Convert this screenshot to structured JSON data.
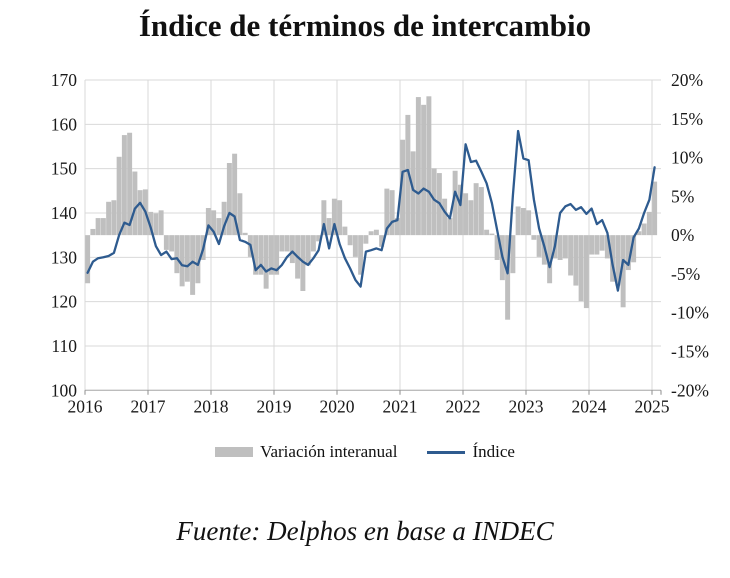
{
  "title": "Índice de términos de intercambio",
  "source": "Fuente: Delphos en base a INDEC",
  "legend": {
    "bar_label": "Variación interanual",
    "line_label": "Índice"
  },
  "colors": {
    "bar": "#BFBFBF",
    "line": "#2E5B8F",
    "grid": "#D9D9D9",
    "axis": "#ACACAC",
    "tick": "#8C8C8C",
    "text": "#1a1a1a"
  },
  "chart_data": {
    "type": "bar+line combo",
    "frequency": "monthly",
    "start": "2016-01",
    "end": "2025-01",
    "x_tick_labels": [
      "2016",
      "2017",
      "2018",
      "2019",
      "2020",
      "2021",
      "2022",
      "2023",
      "2024",
      "2025"
    ],
    "left_axis": {
      "min": 100,
      "max": 170,
      "step": 10,
      "ticks": [
        170,
        160,
        150,
        140,
        130,
        120,
        110,
        100
      ],
      "series": "Índice"
    },
    "right_axis": {
      "min": -20,
      "max": 20,
      "step": 5,
      "unit": "%",
      "ticks": [
        20,
        15,
        10,
        5,
        0,
        -5,
        -10,
        -15,
        -20
      ],
      "series": "Variación interanual"
    },
    "grid": true,
    "legend_position": "bottom",
    "series": [
      {
        "name": "Variación interanual",
        "type": "bar",
        "axis": "right",
        "unit": "%",
        "values": [
          -6.2,
          0.8,
          2.2,
          2.2,
          4.3,
          4.5,
          10.1,
          12.9,
          13.2,
          8.2,
          5.8,
          5.9,
          3.0,
          2.8,
          3.2,
          -1.9,
          -2.1,
          -4.9,
          -6.6,
          -6.0,
          -7.7,
          -6.2,
          -3.2,
          3.5,
          3.2,
          2.2,
          4.3,
          9.3,
          10.5,
          5.4,
          0.3,
          -2.8,
          -5.1,
          -5.1,
          -6.9,
          -5.1,
          -5.1,
          -2.1,
          -2.1,
          -3.6,
          -5.6,
          -7.2,
          -3.9,
          -2.1,
          -0.8,
          4.5,
          2.2,
          4.7,
          4.5,
          1.1,
          -1.3,
          -2.8,
          -5.1,
          -1.1,
          0.5,
          0.7,
          -1.5,
          6.0,
          5.8,
          2.2,
          12.3,
          15.5,
          10.8,
          17.8,
          16.8,
          17.9,
          8.6,
          8.0,
          4.7,
          2.2,
          8.3,
          6.5,
          5.4,
          4.5,
          6.7,
          6.2,
          0.7,
          0.2,
          -3.2,
          -5.8,
          -10.9,
          -4.9,
          3.7,
          3.5,
          3.2,
          -0.6,
          -2.8,
          -3.8,
          -6.2,
          -3.0,
          -3.2,
          -3.0,
          -5.2,
          -6.5,
          -8.5,
          -9.4,
          -2.5,
          -2.5,
          -2.0,
          -3.0,
          -6.0,
          -6.5,
          -9.3,
          -4.5,
          -3.5,
          0.5,
          1.5,
          3.0,
          6.9
        ]
      },
      {
        "name": "Índice",
        "type": "line",
        "axis": "left",
        "values": [
          126.5,
          129.0,
          129.8,
          130.0,
          130.3,
          131.0,
          135.0,
          137.8,
          137.3,
          141.0,
          142.3,
          140.3,
          136.8,
          132.5,
          130.5,
          131.3,
          129.6,
          129.8,
          128.2,
          128.0,
          129.0,
          128.3,
          131.8,
          137.2,
          135.8,
          133.0,
          137.0,
          140.0,
          139.2,
          133.9,
          133.5,
          132.8,
          127.1,
          128.3,
          126.8,
          127.5,
          127.1,
          128.3,
          130.1,
          131.3,
          130.1,
          129.0,
          128.3,
          129.8,
          131.6,
          137.5,
          132.0,
          137.5,
          133.0,
          129.8,
          127.5,
          124.9,
          123.4,
          131.3,
          131.6,
          132.0,
          131.6,
          136.5,
          138.0,
          138.4,
          149.3,
          149.7,
          145.2,
          144.4,
          145.5,
          144.8,
          143.0,
          142.2,
          140.3,
          138.8,
          144.8,
          141.8,
          155.5,
          151.5,
          151.8,
          149.3,
          146.7,
          142.2,
          136.2,
          130.1,
          126.4,
          144.0,
          158.5,
          152.3,
          151.9,
          143.0,
          136.5,
          132.4,
          127.8,
          132.5,
          140.0,
          141.5,
          142.0,
          140.7,
          141.3,
          139.8,
          141.0,
          137.5,
          138.4,
          135.5,
          128.3,
          122.5,
          129.4,
          128.3,
          134.5,
          136.5,
          140.0,
          143.0,
          150.3
        ]
      }
    ]
  }
}
